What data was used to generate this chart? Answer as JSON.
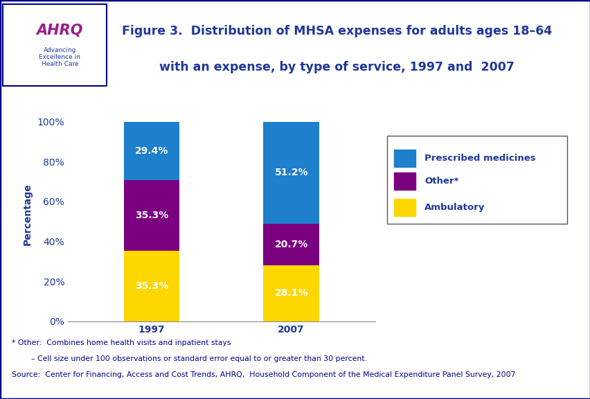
{
  "title_line1": "Figure 3.  Distribution of MHSA expenses for adults ages 18–64",
  "title_line2": "with an expense, by type of service, 1997 and  2007",
  "categories": [
    "1997",
    "2007"
  ],
  "ambulatory": [
    35.3,
    28.1
  ],
  "other": [
    35.3,
    20.7
  ],
  "prescribed": [
    29.4,
    51.2
  ],
  "ambulatory_color": "#FFD700",
  "other_color": "#7B0080",
  "prescribed_color": "#1E7FCC",
  "ylabel": "Percentage",
  "yticks": [
    0,
    20,
    40,
    60,
    80,
    100
  ],
  "ytick_labels": [
    "0%",
    "20%",
    "40%",
    "60%",
    "80%",
    "100%"
  ],
  "legend_labels": [
    "Prescribed medicines",
    "Other*",
    "Ambulatory"
  ],
  "footnote1": "* Other:  Combines home health visits and inpatient stays",
  "footnote2": "        – Cell size under 100 observations or standard error equal to or greater than 30 percent.",
  "footnote3": "Source:  Center for Financing, Access and Cost Trends, AHRQ,  Household Component of the Medical Expenditure Panel Survey, 2007",
  "bar_width": 0.4,
  "label_color": "#FFFFFF",
  "label_fontsize": 10,
  "title_color": "#1F3899",
  "axis_label_color": "#1F3899",
  "tick_color": "#1F3899",
  "footnote_color": "#00008B",
  "bg_color": "#FFFFFF",
  "blue_line_color": "#00008B",
  "border_color": "#00008B",
  "header_bg": "#F0F4FF"
}
